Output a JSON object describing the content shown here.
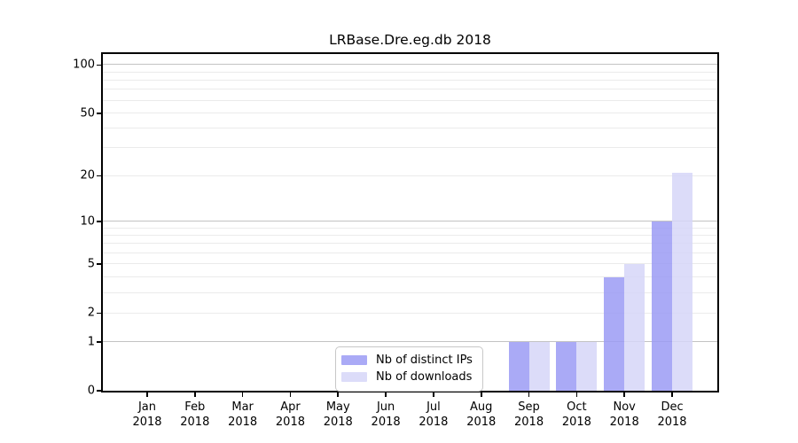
{
  "chart_data": {
    "type": "bar",
    "title": "LRBase.Dre.eg.db 2018",
    "categories": [
      "Jan 2018",
      "Feb 2018",
      "Mar 2018",
      "Apr 2018",
      "May 2018",
      "Jun 2018",
      "Jul 2018",
      "Aug 2018",
      "Sep 2018",
      "Oct 2018",
      "Nov 2018",
      "Dec 2018"
    ],
    "x_tick_line1": [
      "Jan",
      "Feb",
      "Mar",
      "Apr",
      "May",
      "Jun",
      "Jul",
      "Aug",
      "Sep",
      "Oct",
      "Nov",
      "Dec"
    ],
    "x_tick_line2": "2018",
    "series": [
      {
        "name": "Nb of distinct IPs",
        "color": "#9b9bf5",
        "values": [
          0,
          0,
          0,
          0,
          0,
          0,
          0,
          0,
          1,
          1,
          4,
          10
        ]
      },
      {
        "name": "Nb of downloads",
        "color": "#d6d6f8",
        "values": [
          0,
          0,
          0,
          0,
          0,
          0,
          0,
          0,
          1,
          1,
          5,
          21
        ]
      }
    ],
    "y_axis": {
      "scale": "log10(1+y)",
      "tick_labels": [
        "0",
        "1",
        "2",
        "5",
        "10",
        "20",
        "50",
        "100"
      ],
      "ticks": [
        0,
        1,
        2,
        5,
        10,
        20,
        50,
        100
      ],
      "major_gridlines": [
        1,
        10,
        100
      ],
      "minor_gridlines": [
        2,
        3,
        4,
        5,
        6,
        7,
        8,
        9,
        20,
        30,
        40,
        50,
        60,
        70,
        80,
        90
      ],
      "ylim": [
        0,
        116
      ]
    },
    "grid": true,
    "legend": {
      "position": "inside-bottom-center",
      "entries": [
        "Nb of distinct IPs",
        "Nb of downloads"
      ]
    }
  },
  "colors": {
    "axis": "#000000",
    "grid_major": "#c3c3c3",
    "grid_minor": "#ebebeb",
    "background": "#ffffff",
    "bar_distinct_ips": "#9b9bf5",
    "bar_downloads": "#d6d6f8"
  }
}
